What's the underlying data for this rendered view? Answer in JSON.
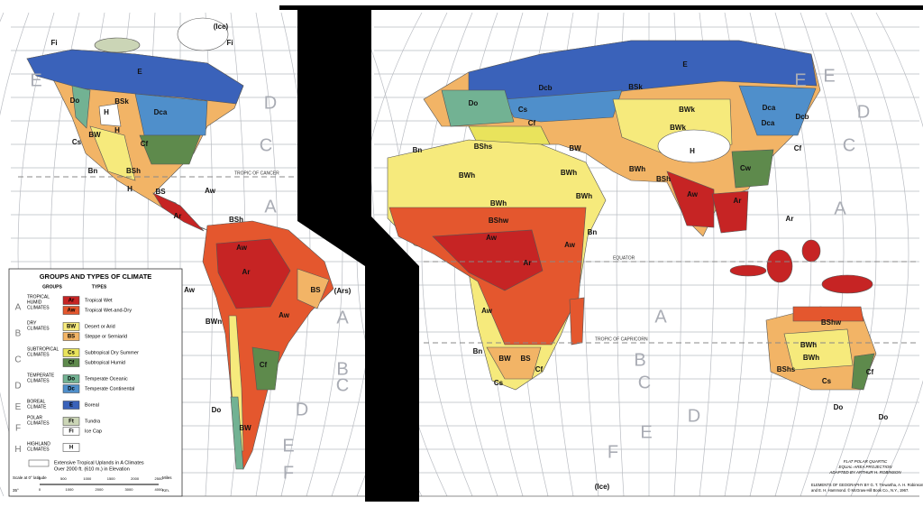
{
  "legend": {
    "title": "GROUPS AND TYPES OF CLIMATE",
    "groups_header": "GROUPS",
    "types_header": "TYPES",
    "groups": [
      {
        "letter": "A",
        "name": [
          "TROPICAL",
          "HUMID",
          "CLIMATES"
        ],
        "types": [
          {
            "code": "Ar",
            "name": "Tropical Wet",
            "color": "#c62424"
          },
          {
            "code": "Aw",
            "name": "Tropical Wet-and-Dry",
            "color": "#e4572e"
          }
        ]
      },
      {
        "letter": "B",
        "name": [
          "DRY",
          "CLIMATES"
        ],
        "types": [
          {
            "code": "BW",
            "name": "Desert or Arid",
            "color": "#f6ea7c"
          },
          {
            "code": "BS",
            "name": "Steppe or Semiarid",
            "color": "#f2b466"
          }
        ]
      },
      {
        "letter": "C",
        "name": [
          "SUBTROPICAL",
          "CLIMATES"
        ],
        "types": [
          {
            "code": "Cs",
            "name": "Subtropical Dry Summer",
            "color": "#e9e35c"
          },
          {
            "code": "Cf",
            "name": "Subtropical Humid",
            "color": "#5e8a4c"
          }
        ]
      },
      {
        "letter": "D",
        "name": [
          "TEMPERATE",
          "CLIMATES"
        ],
        "types": [
          {
            "code": "Do",
            "name": "Temperate Oceanic",
            "color": "#72b293"
          },
          {
            "code": "Dc",
            "name": "Temperate Continental",
            "color": "#4f8fcb"
          }
        ]
      },
      {
        "letter": "E",
        "name": [
          "BOREAL",
          "CLIMATE"
        ],
        "types": [
          {
            "code": "E",
            "name": "Boreal",
            "color": "#3a62ba"
          }
        ]
      },
      {
        "letter": "F",
        "name": [
          "POLAR",
          "CLIMATES"
        ],
        "types": [
          {
            "code": "Ft",
            "name": "Tundra",
            "color": "#cbd5b6"
          },
          {
            "code": "Fi",
            "name": "Ice Cap",
            "color": "#ffffff"
          }
        ]
      },
      {
        "letter": "H",
        "name": [
          "HIGHLAND",
          "CLIMATES"
        ],
        "types": [
          {
            "code": "H",
            "color": "#ffffff"
          }
        ]
      }
    ],
    "uplands_note": [
      "Extensive Tropical Uplands in A Climates",
      "Over 2000 ft. (610 m.) in Elevation"
    ],
    "scale_label_1": "Scale at 0° latitude",
    "scale_label_2": "35°",
    "miles_unit": "Miles",
    "km_unit": "Km.",
    "miles": [
      0,
      500,
      1000,
      1500,
      2000,
      2500
    ],
    "km": [
      0,
      1000,
      2000,
      3000,
      4000
    ]
  },
  "lines": {
    "cancer": "TROPIC OF CANCER",
    "equator": "EQUATOR",
    "capricorn": "TROPIC OF CAPRICORN"
  },
  "map_labels": [
    "(Ice)",
    "Fi",
    "Fi",
    "E",
    "Do",
    "BSk",
    "H",
    "Dca",
    "BW",
    "H",
    "Cs",
    "Cf",
    "Bn",
    "BSh",
    "H",
    "BS",
    "Ar",
    "Aw",
    "BSh",
    "Aw",
    "Ar",
    "BS",
    "(Ars)",
    "Aw",
    "Aw",
    "BWn",
    "Cf",
    "Do",
    "BW",
    "E",
    "Dcb",
    "BSk",
    "Do",
    "Cs",
    "Cf",
    "BWk",
    "BWk",
    "Dcb",
    "Dca",
    "Dca",
    "BShs",
    "BW",
    "H",
    "Cf",
    "Cw",
    "Bn",
    "BWh",
    "BWh",
    "BWh",
    "BSh",
    "BWh",
    "BWh",
    "Aw",
    "Ar",
    "Ar",
    "BShw",
    "Aw",
    "Aw",
    "Bn",
    "Ar",
    "Aw",
    "Bn",
    "BW",
    "BS",
    "Cs",
    "Cf",
    "BShw",
    "BWh",
    "BWh",
    "BShs",
    "Cf",
    "Cs",
    "Do",
    "Do",
    "(Ice)"
  ],
  "ocean_letters": [
    "E",
    "D",
    "C",
    "A",
    "A",
    "B",
    "C",
    "D",
    "E",
    "F",
    "E",
    "E",
    "D",
    "C",
    "A",
    "A",
    "B",
    "C",
    "D",
    "E",
    "F"
  ],
  "credits": {
    "projection": [
      "FLAT POLAR QUARTIC",
      "EQUAL-AREA PROJECTION",
      "ADAPTED BY ARTHUR H. ROBINSON"
    ],
    "source": [
      "ELEMENTS OF GEOGRAPHY BY G. T. Trewartha, A. H. Robinson,",
      "and E. H. Hammond. © McGraw-Hill Book Co., N.Y., 1967."
    ]
  }
}
